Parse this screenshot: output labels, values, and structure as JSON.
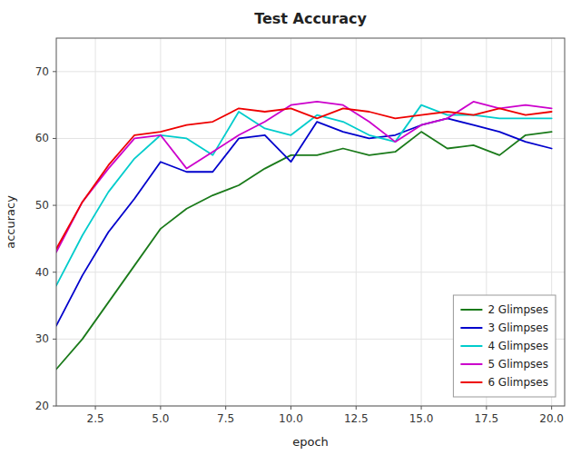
{
  "chart_data": {
    "type": "line",
    "title": "Test Accuracy",
    "xlabel": "epoch",
    "ylabel": "accuracy",
    "x": [
      1,
      2,
      3,
      4,
      5,
      6,
      7,
      8,
      9,
      10,
      11,
      12,
      13,
      14,
      15,
      16,
      17,
      18,
      19,
      20
    ],
    "series": [
      {
        "name": "2 Glimpses",
        "color": "#1a7a1a",
        "values": [
          25.5,
          30.0,
          35.5,
          41.0,
          46.5,
          49.5,
          51.5,
          53.0,
          55.5,
          57.5,
          57.5,
          58.5,
          57.5,
          58.0,
          61.0,
          58.5,
          59.0,
          57.5,
          60.5,
          61.0
        ]
      },
      {
        "name": "3 Glimpses",
        "color": "#0000cc",
        "values": [
          32.0,
          39.5,
          46.0,
          51.0,
          56.5,
          55.0,
          55.0,
          60.0,
          60.5,
          56.5,
          62.5,
          61.0,
          60.0,
          60.5,
          62.0,
          63.0,
          62.0,
          61.0,
          59.5,
          58.5
        ]
      },
      {
        "name": "4 Glimpses",
        "color": "#00cccc",
        "values": [
          38.0,
          45.5,
          52.0,
          57.0,
          60.5,
          60.0,
          57.5,
          64.0,
          61.5,
          60.5,
          63.5,
          62.5,
          60.5,
          59.5,
          65.0,
          63.5,
          63.5,
          63.0,
          63.0,
          63.0
        ]
      },
      {
        "name": "5 Glimpses",
        "color": "#cc00cc",
        "values": [
          43.0,
          50.5,
          55.5,
          60.0,
          60.5,
          55.5,
          58.0,
          60.5,
          62.5,
          65.0,
          65.5,
          65.0,
          62.5,
          59.5,
          62.0,
          63.0,
          65.5,
          64.5,
          65.0,
          64.5
        ]
      },
      {
        "name": "6 Glimpses",
        "color": "#ee0000",
        "values": [
          43.5,
          50.5,
          56.0,
          60.5,
          61.0,
          62.0,
          62.5,
          64.5,
          64.0,
          64.5,
          63.0,
          64.5,
          64.0,
          63.0,
          63.5,
          64.0,
          63.5,
          64.5,
          63.5,
          64.0
        ]
      }
    ],
    "xlim": [
      1,
      20.5
    ],
    "ylim": [
      20,
      75
    ],
    "xticks": [
      2.5,
      {
        "value": 5.0,
        "label": "5.0"
      },
      7.5,
      {
        "value": 10.0,
        "label": "10.0"
      },
      12.5,
      {
        "value": 15.0,
        "label": "15.0"
      },
      17.5,
      {
        "value": 20.0,
        "label": "20.0"
      }
    ],
    "yticks": [
      20,
      30,
      40,
      50,
      60,
      70
    ],
    "grid": true,
    "legend": "lower right"
  }
}
